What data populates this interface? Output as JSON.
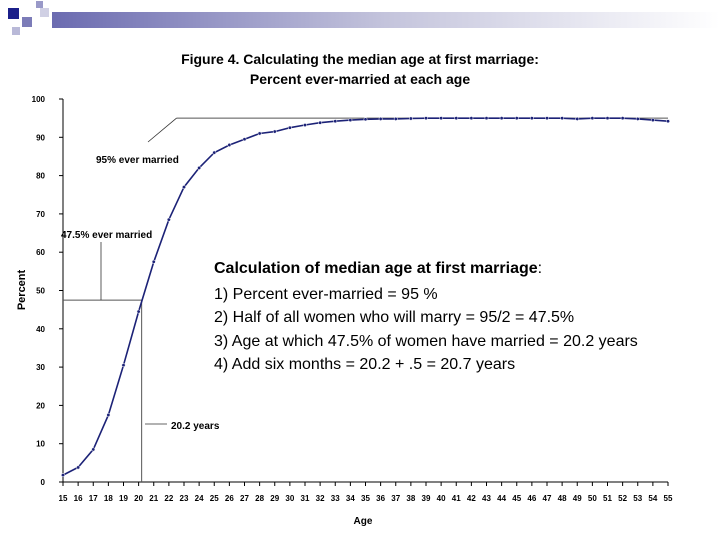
{
  "chart_data": {
    "type": "line",
    "title": "Figure 4.  Calculating the median age at first marriage:",
    "subtitle": "Percent ever-married at each age",
    "xlabel": "Age",
    "ylabel": "Percent",
    "ylim": [
      0,
      100
    ],
    "yticks": [
      0,
      10,
      20,
      30,
      40,
      50,
      60,
      70,
      80,
      90,
      100
    ],
    "x": [
      15,
      16,
      17,
      18,
      19,
      20,
      21,
      22,
      23,
      24,
      25,
      26,
      27,
      28,
      29,
      30,
      31,
      32,
      33,
      34,
      35,
      36,
      37,
      38,
      39,
      40,
      41,
      42,
      43,
      44,
      45,
      46,
      47,
      48,
      49,
      50,
      51,
      52,
      53,
      54,
      55
    ],
    "series": [
      {
        "name": "Percent ever-married",
        "values": [
          1.8,
          3.8,
          8.5,
          17.5,
          30.5,
          44.5,
          57.5,
          68.5,
          77,
          82,
          86,
          88,
          89.5,
          91,
          91.5,
          92.5,
          93.2,
          93.8,
          94.2,
          94.5,
          94.7,
          94.8,
          94.8,
          94.9,
          95,
          95,
          95,
          95,
          95,
          95,
          95,
          95,
          95,
          95,
          94.8,
          95,
          95,
          95,
          94.8,
          94.5,
          94.2
        ]
      }
    ],
    "annotations": [
      {
        "text": "95% ever married",
        "y": 95
      },
      {
        "text": "47.5% ever married",
        "y": 47.5
      },
      {
        "text": "20.2 years",
        "x": 20.2
      }
    ],
    "calc_title": "Calculation of median age at first marriage",
    "calc_lines": [
      "1)  Percent ever-married = 95 %",
      "2)  Half of all women who will marry =  95/2 = 47.5%",
      "3)  Age at which 47.5% of women have married = 20.2 years",
      "4)  Add six months = 20.2 + .5 = 20.7 years"
    ]
  }
}
